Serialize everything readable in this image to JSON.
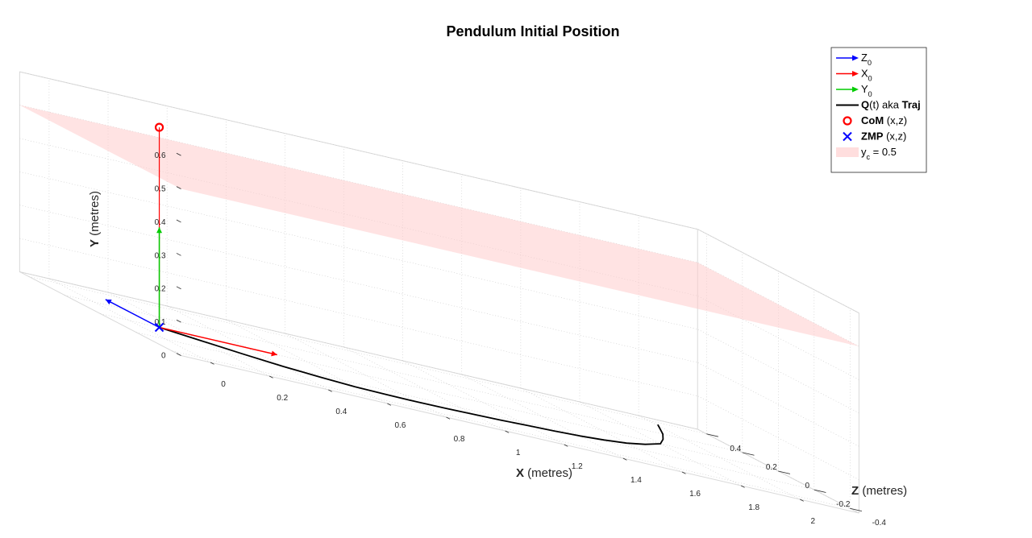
{
  "chart_data": {
    "type": "line3d",
    "title": "Pendulum Initial Position",
    "axes": {
      "x": {
        "label_bold": "X",
        "label_rest": " (metres)",
        "lim": [
          -0.1,
          2.2
        ],
        "ticks": [
          0,
          0.2,
          0.4,
          0.6,
          0.8,
          1,
          1.2,
          1.4,
          1.6,
          1.8,
          2
        ],
        "tick_labels": [
          "0",
          "0.2",
          "0.4",
          "0.6",
          "0.8",
          "1",
          "1.2",
          "1.4",
          "1.6",
          "1.8",
          "2"
        ]
      },
      "y": {
        "label_bold": "Y",
        "label_rest": " (metres)",
        "lim": [
          0,
          0.6
        ],
        "ticks": [
          0,
          0.1,
          0.2,
          0.3,
          0.4,
          0.5,
          0.6
        ],
        "tick_labels": [
          "0",
          "0.1",
          "0.2",
          "0.3",
          "0.4",
          "0.5",
          "0.6"
        ]
      },
      "z": {
        "label_bold": "Z",
        "label_rest": " (metres)",
        "lim": [
          -0.45,
          0.45
        ],
        "ticks": [
          -0.4,
          -0.2,
          0,
          0.2,
          0.4
        ],
        "tick_labels": [
          "-0.4",
          "-0.2",
          "0",
          "0.2",
          "0.4"
        ]
      }
    },
    "grid": true,
    "plane": {
      "name": "y_c = 0.5",
      "y": 0.5,
      "color": "#ffcccc"
    },
    "frame_vectors": [
      {
        "name": "Z_0",
        "color": "#0000ff",
        "from": [
          0.1,
          0,
          0
        ],
        "to": [
          0.1,
          0,
          0.3
        ]
      },
      {
        "name": "X_0",
        "color": "#ff0000",
        "from": [
          0.1,
          0,
          0
        ],
        "to": [
          0.5,
          0,
          0
        ]
      },
      {
        "name": "Y_0",
        "color": "#00cc00",
        "from": [
          0.1,
          0,
          0
        ],
        "to": [
          0.1,
          0.3,
          0
        ]
      }
    ],
    "com_line": {
      "color": "#ff0000",
      "from": [
        0.1,
        0,
        0
      ],
      "to": [
        0.1,
        0.6,
        0
      ]
    },
    "trajectory": {
      "name": "Q(t) aka Traj",
      "color": "#000000",
      "points": [
        [
          0.1,
          0,
          0.0
        ],
        [
          0.2,
          0,
          -0.07
        ],
        [
          0.3,
          0,
          -0.14
        ],
        [
          0.4,
          0,
          -0.2
        ],
        [
          0.5,
          0,
          -0.24
        ],
        [
          0.6,
          0,
          -0.27
        ],
        [
          0.7,
          0,
          -0.28
        ],
        [
          0.8,
          0,
          -0.285
        ],
        [
          0.9,
          0,
          -0.28
        ],
        [
          1.0,
          0,
          -0.27
        ],
        [
          1.1,
          0,
          -0.26
        ],
        [
          1.2,
          0,
          -0.245
        ],
        [
          1.3,
          0,
          -0.23
        ],
        [
          1.4,
          0,
          -0.21
        ],
        [
          1.5,
          0,
          -0.18
        ],
        [
          1.6,
          0,
          -0.14
        ],
        [
          1.7,
          0,
          -0.08
        ],
        [
          1.8,
          0,
          0.0
        ],
        [
          1.87,
          0,
          0.1
        ],
        [
          1.93,
          0,
          0.2
        ],
        [
          1.98,
          0,
          0.3
        ],
        [
          2.01,
          0,
          0.36
        ]
      ]
    },
    "com": {
      "name": "CoM (x,z)",
      "color": "#ff0000",
      "point": [
        0.1,
        0.6,
        0
      ]
    },
    "zmp": {
      "name": "ZMP (x,z)",
      "color": "#0000ff",
      "point": [
        0.1,
        0,
        0
      ]
    },
    "legend": {
      "placement": "top-right",
      "entries": [
        {
          "kind": "arrow",
          "color": "#0000ff",
          "main": "Z",
          "sub": "0"
        },
        {
          "kind": "arrow",
          "color": "#ff0000",
          "main": "X",
          "sub": "0"
        },
        {
          "kind": "arrow",
          "color": "#00cc00",
          "main": "Y",
          "sub": "0"
        },
        {
          "kind": "line",
          "color": "#000000",
          "bold1": "Q",
          "rest1": "(t) aka ",
          "bold2": "Traj"
        },
        {
          "kind": "circle",
          "color": "#ff0000",
          "bold1": "CoM",
          "rest1": " (x,z)"
        },
        {
          "kind": "cross",
          "color": "#0000ff",
          "bold1": "ZMP",
          "rest1": " (x,z)"
        },
        {
          "kind": "patch",
          "color": "#ffdede",
          "main": "y",
          "sub": "c",
          "tail": " = 0.5"
        }
      ]
    }
  }
}
